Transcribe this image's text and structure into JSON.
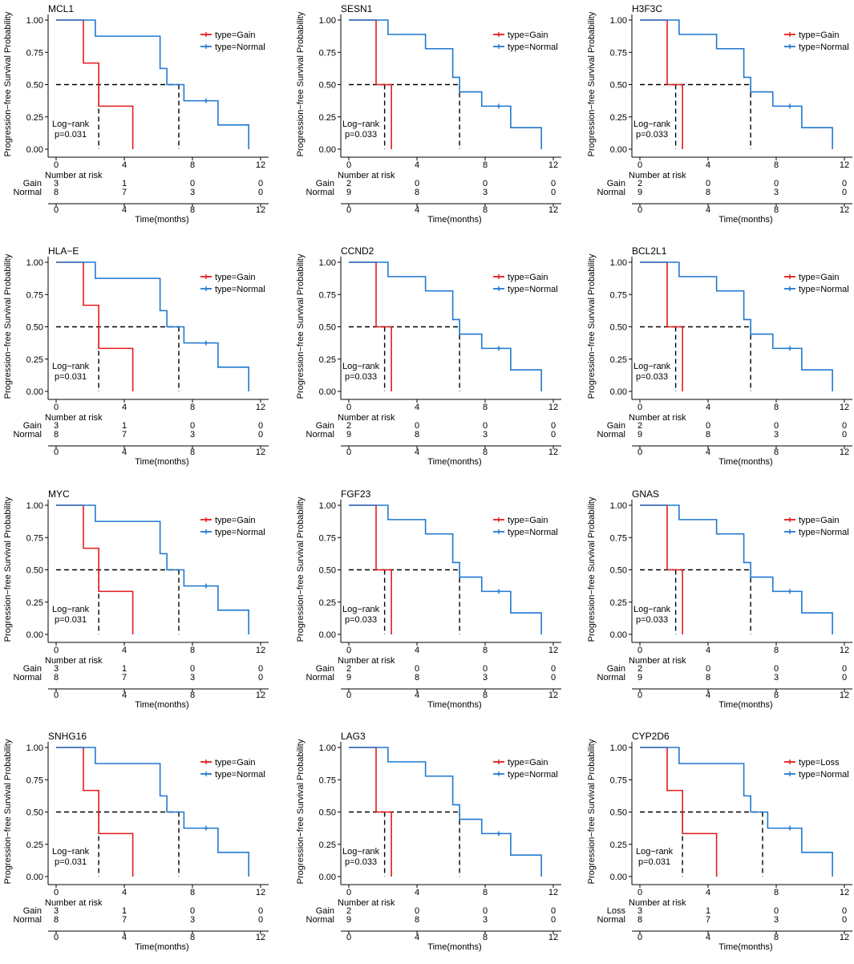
{
  "colors": {
    "gain": "#E41A1C",
    "normal": "#1F78D0",
    "axis": "#000000",
    "median": "#000000"
  },
  "shared": {
    "ylabel": "Progression−free Survival Probability",
    "xlabel": "Time(months)",
    "risk_title": "Number at risk",
    "y_ticks": [
      "1.00",
      "0.75",
      "0.50",
      "0.25",
      "0.00"
    ],
    "x_ticks": [
      "0",
      "4",
      "8",
      "12"
    ],
    "log_rank": "Log−rank",
    "normal_row_label": "Normal",
    "legend_normal": "type=Normal"
  },
  "chart_data": [
    {
      "type": "line",
      "title": "MCL1",
      "variant": "A",
      "group": "Gain",
      "legend_group": "type=Gain",
      "p_value": "p=0.031",
      "xlim": [
        0,
        12
      ],
      "ylim": [
        0,
        1
      ],
      "series": [
        {
          "name": "type=Gain",
          "color": "#E41A1C",
          "x": [
            0,
            1.6,
            2.5,
            4.5
          ],
          "y": [
            1.0,
            0.667,
            0.333,
            0.0
          ],
          "censor": []
        },
        {
          "name": "type=Normal",
          "color": "#1F78D0",
          "x": [
            0,
            2.3,
            6.1,
            6.5,
            7.5,
            9.5,
            11.3
          ],
          "y": [
            1.0,
            0.875,
            0.625,
            0.5,
            0.375,
            0.1875,
            0.0
          ],
          "censor": [
            [
              8.8,
              0.375
            ]
          ]
        }
      ],
      "medians": [
        2.5,
        7.2
      ],
      "risk": {
        "times": [
          0,
          4,
          8,
          12
        ],
        "group": [
          3,
          1,
          0,
          0
        ],
        "normal": [
          8,
          7,
          3,
          0
        ]
      }
    },
    {
      "type": "line",
      "title": "SESN1",
      "variant": "B",
      "group": "Gain",
      "legend_group": "type=Gain",
      "p_value": "p=0.033",
      "xlim": [
        0,
        12
      ],
      "ylim": [
        0,
        1
      ],
      "series": [
        {
          "name": "type=Gain",
          "color": "#E41A1C",
          "x": [
            0,
            1.6,
            2.5
          ],
          "y": [
            1.0,
            0.5,
            0.0
          ],
          "censor": []
        },
        {
          "name": "type=Normal",
          "color": "#1F78D0",
          "x": [
            0,
            2.3,
            4.5,
            6.1,
            6.5,
            7.8,
            9.5,
            11.3
          ],
          "y": [
            1.0,
            0.889,
            0.778,
            0.556,
            0.444,
            0.333,
            0.1667,
            0.0
          ],
          "censor": [
            [
              8.8,
              0.333
            ]
          ]
        }
      ],
      "medians": [
        2.1,
        6.5
      ],
      "risk": {
        "times": [
          0,
          4,
          8,
          12
        ],
        "group": [
          2,
          0,
          0,
          0
        ],
        "normal": [
          9,
          8,
          3,
          0
        ]
      }
    },
    {
      "type": "line",
      "title": "H3F3C",
      "variant": "B",
      "group": "Gain",
      "legend_group": "type=Gain",
      "p_value": "p=0.033",
      "xlim": [
        0,
        12
      ],
      "ylim": [
        0,
        1
      ],
      "series": [
        {
          "name": "type=Gain",
          "color": "#E41A1C",
          "x": [
            0,
            1.6,
            2.5
          ],
          "y": [
            1.0,
            0.5,
            0.0
          ],
          "censor": []
        },
        {
          "name": "type=Normal",
          "color": "#1F78D0",
          "x": [
            0,
            2.3,
            4.5,
            6.1,
            6.5,
            7.8,
            9.5,
            11.3
          ],
          "y": [
            1.0,
            0.889,
            0.778,
            0.556,
            0.444,
            0.333,
            0.1667,
            0.0
          ],
          "censor": [
            [
              8.8,
              0.333
            ]
          ]
        }
      ],
      "medians": [
        2.1,
        6.5
      ],
      "risk": {
        "times": [
          0,
          4,
          8,
          12
        ],
        "group": [
          2,
          0,
          0,
          0
        ],
        "normal": [
          9,
          8,
          3,
          0
        ]
      }
    },
    {
      "type": "line",
      "title": "HLA−E",
      "variant": "A",
      "group": "Gain",
      "legend_group": "type=Gain",
      "p_value": "p=0.031",
      "xlim": [
        0,
        12
      ],
      "ylim": [
        0,
        1
      ],
      "series": [
        {
          "name": "type=Gain",
          "color": "#E41A1C",
          "x": [
            0,
            1.6,
            2.5,
            4.5
          ],
          "y": [
            1.0,
            0.667,
            0.333,
            0.0
          ],
          "censor": []
        },
        {
          "name": "type=Normal",
          "color": "#1F78D0",
          "x": [
            0,
            2.3,
            6.1,
            6.5,
            7.5,
            9.5,
            11.3
          ],
          "y": [
            1.0,
            0.875,
            0.625,
            0.5,
            0.375,
            0.1875,
            0.0
          ],
          "censor": [
            [
              8.8,
              0.375
            ]
          ]
        }
      ],
      "medians": [
        2.5,
        7.2
      ],
      "risk": {
        "times": [
          0,
          4,
          8,
          12
        ],
        "group": [
          3,
          1,
          0,
          0
        ],
        "normal": [
          8,
          7,
          3,
          0
        ]
      }
    },
    {
      "type": "line",
      "title": "CCND2",
      "variant": "B",
      "group": "Gain",
      "legend_group": "type=Gain",
      "p_value": "p=0.033",
      "xlim": [
        0,
        12
      ],
      "ylim": [
        0,
        1
      ],
      "series": [
        {
          "name": "type=Gain",
          "color": "#E41A1C",
          "x": [
            0,
            1.6,
            2.5
          ],
          "y": [
            1.0,
            0.5,
            0.0
          ],
          "censor": []
        },
        {
          "name": "type=Normal",
          "color": "#1F78D0",
          "x": [
            0,
            2.3,
            4.5,
            6.1,
            6.5,
            7.8,
            9.5,
            11.3
          ],
          "y": [
            1.0,
            0.889,
            0.778,
            0.556,
            0.444,
            0.333,
            0.1667,
            0.0
          ],
          "censor": [
            [
              8.8,
              0.333
            ]
          ]
        }
      ],
      "medians": [
        2.1,
        6.5
      ],
      "risk": {
        "times": [
          0,
          4,
          8,
          12
        ],
        "group": [
          2,
          0,
          0,
          0
        ],
        "normal": [
          9,
          8,
          3,
          0
        ]
      }
    },
    {
      "type": "line",
      "title": "BCL2L1",
      "variant": "B",
      "group": "Gain",
      "legend_group": "type=Gain",
      "p_value": "p=0.033",
      "xlim": [
        0,
        12
      ],
      "ylim": [
        0,
        1
      ],
      "series": [
        {
          "name": "type=Gain",
          "color": "#E41A1C",
          "x": [
            0,
            1.6,
            2.5
          ],
          "y": [
            1.0,
            0.5,
            0.0
          ],
          "censor": []
        },
        {
          "name": "type=Normal",
          "color": "#1F78D0",
          "x": [
            0,
            2.3,
            4.5,
            6.1,
            6.5,
            7.8,
            9.5,
            11.3
          ],
          "y": [
            1.0,
            0.889,
            0.778,
            0.556,
            0.444,
            0.333,
            0.1667,
            0.0
          ],
          "censor": [
            [
              8.8,
              0.333
            ]
          ]
        }
      ],
      "medians": [
        2.1,
        6.5
      ],
      "risk": {
        "times": [
          0,
          4,
          8,
          12
        ],
        "group": [
          2,
          0,
          0,
          0
        ],
        "normal": [
          9,
          8,
          3,
          0
        ]
      }
    },
    {
      "type": "line",
      "title": "MYC",
      "variant": "A",
      "group": "Gain",
      "legend_group": "type=Gain",
      "p_value": "p=0.031",
      "xlim": [
        0,
        12
      ],
      "ylim": [
        0,
        1
      ],
      "series": [
        {
          "name": "type=Gain",
          "color": "#E41A1C",
          "x": [
            0,
            1.6,
            2.5,
            4.5
          ],
          "y": [
            1.0,
            0.667,
            0.333,
            0.0
          ],
          "censor": []
        },
        {
          "name": "type=Normal",
          "color": "#1F78D0",
          "x": [
            0,
            2.3,
            6.1,
            6.5,
            7.5,
            9.5,
            11.3
          ],
          "y": [
            1.0,
            0.875,
            0.625,
            0.5,
            0.375,
            0.1875,
            0.0
          ],
          "censor": [
            [
              8.8,
              0.375
            ]
          ]
        }
      ],
      "medians": [
        2.5,
        7.2
      ],
      "risk": {
        "times": [
          0,
          4,
          8,
          12
        ],
        "group": [
          3,
          1,
          0,
          0
        ],
        "normal": [
          8,
          7,
          3,
          0
        ]
      }
    },
    {
      "type": "line",
      "title": "FGF23",
      "variant": "B",
      "group": "Gain",
      "legend_group": "type=Gain",
      "p_value": "p=0.033",
      "xlim": [
        0,
        12
      ],
      "ylim": [
        0,
        1
      ],
      "series": [
        {
          "name": "type=Gain",
          "color": "#E41A1C",
          "x": [
            0,
            1.6,
            2.5
          ],
          "y": [
            1.0,
            0.5,
            0.0
          ],
          "censor": []
        },
        {
          "name": "type=Normal",
          "color": "#1F78D0",
          "x": [
            0,
            2.3,
            4.5,
            6.1,
            6.5,
            7.8,
            9.5,
            11.3
          ],
          "y": [
            1.0,
            0.889,
            0.778,
            0.556,
            0.444,
            0.333,
            0.1667,
            0.0
          ],
          "censor": [
            [
              8.8,
              0.333
            ]
          ]
        }
      ],
      "medians": [
        2.1,
        6.5
      ],
      "risk": {
        "times": [
          0,
          4,
          8,
          12
        ],
        "group": [
          2,
          0,
          0,
          0
        ],
        "normal": [
          9,
          8,
          3,
          0
        ]
      }
    },
    {
      "type": "line",
      "title": "GNAS",
      "variant": "B",
      "group": "Gain",
      "legend_group": "type=Gain",
      "p_value": "p=0.033",
      "xlim": [
        0,
        12
      ],
      "ylim": [
        0,
        1
      ],
      "series": [
        {
          "name": "type=Gain",
          "color": "#E41A1C",
          "x": [
            0,
            1.6,
            2.5
          ],
          "y": [
            1.0,
            0.5,
            0.0
          ],
          "censor": []
        },
        {
          "name": "type=Normal",
          "color": "#1F78D0",
          "x": [
            0,
            2.3,
            4.5,
            6.1,
            6.5,
            7.8,
            9.5,
            11.3
          ],
          "y": [
            1.0,
            0.889,
            0.778,
            0.556,
            0.444,
            0.333,
            0.1667,
            0.0
          ],
          "censor": [
            [
              8.8,
              0.333
            ]
          ]
        }
      ],
      "medians": [
        2.1,
        6.5
      ],
      "risk": {
        "times": [
          0,
          4,
          8,
          12
        ],
        "group": [
          2,
          0,
          0,
          0
        ],
        "normal": [
          9,
          8,
          3,
          0
        ]
      }
    },
    {
      "type": "line",
      "title": "SNHG16",
      "variant": "A",
      "group": "Gain",
      "legend_group": "type=Gain",
      "p_value": "p=0.031",
      "xlim": [
        0,
        12
      ],
      "ylim": [
        0,
        1
      ],
      "series": [
        {
          "name": "type=Gain",
          "color": "#E41A1C",
          "x": [
            0,
            1.6,
            2.5,
            4.5
          ],
          "y": [
            1.0,
            0.667,
            0.333,
            0.0
          ],
          "censor": []
        },
        {
          "name": "type=Normal",
          "color": "#1F78D0",
          "x": [
            0,
            2.3,
            6.1,
            6.5,
            7.5,
            9.5,
            11.3
          ],
          "y": [
            1.0,
            0.875,
            0.625,
            0.5,
            0.375,
            0.1875,
            0.0
          ],
          "censor": [
            [
              8.8,
              0.375
            ]
          ]
        }
      ],
      "medians": [
        2.5,
        7.2
      ],
      "risk": {
        "times": [
          0,
          4,
          8,
          12
        ],
        "group": [
          3,
          1,
          0,
          0
        ],
        "normal": [
          8,
          7,
          3,
          0
        ]
      }
    },
    {
      "type": "line",
      "title": "LAG3",
      "variant": "B",
      "group": "Gain",
      "legend_group": "type=Gain",
      "p_value": "p=0.033",
      "xlim": [
        0,
        12
      ],
      "ylim": [
        0,
        1
      ],
      "series": [
        {
          "name": "type=Gain",
          "color": "#E41A1C",
          "x": [
            0,
            1.6,
            2.5
          ],
          "y": [
            1.0,
            0.5,
            0.0
          ],
          "censor": []
        },
        {
          "name": "type=Normal",
          "color": "#1F78D0",
          "x": [
            0,
            2.3,
            4.5,
            6.1,
            6.5,
            7.8,
            9.5,
            11.3
          ],
          "y": [
            1.0,
            0.889,
            0.778,
            0.556,
            0.444,
            0.333,
            0.1667,
            0.0
          ],
          "censor": [
            [
              8.8,
              0.333
            ]
          ]
        }
      ],
      "medians": [
        2.1,
        6.5
      ],
      "risk": {
        "times": [
          0,
          4,
          8,
          12
        ],
        "group": [
          2,
          0,
          0,
          0
        ],
        "normal": [
          9,
          8,
          3,
          0
        ]
      }
    },
    {
      "type": "line",
      "title": "CYP2D6",
      "variant": "A",
      "group": "Loss",
      "legend_group": "type=Loss",
      "p_value": "p=0.031",
      "xlim": [
        0,
        12
      ],
      "ylim": [
        0,
        1
      ],
      "series": [
        {
          "name": "type=Loss",
          "color": "#E41A1C",
          "x": [
            0,
            1.6,
            2.5,
            4.5
          ],
          "y": [
            1.0,
            0.667,
            0.333,
            0.0
          ],
          "censor": []
        },
        {
          "name": "type=Normal",
          "color": "#1F78D0",
          "x": [
            0,
            2.3,
            6.1,
            6.5,
            7.5,
            9.5,
            11.3
          ],
          "y": [
            1.0,
            0.875,
            0.625,
            0.5,
            0.375,
            0.1875,
            0.0
          ],
          "censor": [
            [
              8.8,
              0.375
            ]
          ]
        }
      ],
      "medians": [
        2.5,
        7.2
      ],
      "risk": {
        "times": [
          0,
          4,
          8,
          12
        ],
        "group": [
          3,
          1,
          0,
          0
        ],
        "normal": [
          8,
          7,
          3,
          0
        ]
      }
    }
  ]
}
